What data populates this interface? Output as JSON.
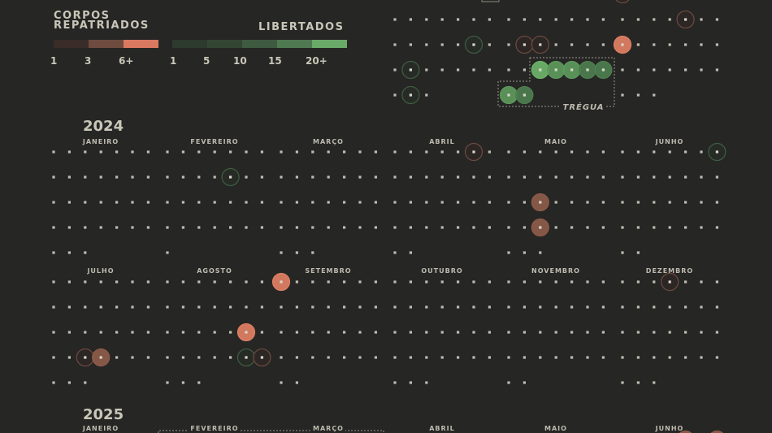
{
  "legend": {
    "bodies": {
      "title_line1": "CORPOS",
      "title_line2": "REPATRIADOS",
      "ticks": [
        "1",
        "3",
        "6+"
      ],
      "colors": [
        "#3a2c28",
        "#6e4b3f",
        "#d97a60"
      ]
    },
    "released": {
      "title": "LIBERTADOS",
      "ticks": [
        "1",
        "5",
        "10",
        "15",
        "20+"
      ],
      "colors": [
        "#2d3a2e",
        "#334634",
        "#3e5a40",
        "#4f7a51",
        "#6aaa69"
      ]
    }
  },
  "years": [
    "2024",
    "2025"
  ],
  "month_names": [
    "JANEIRO",
    "FEVEREIRO",
    "MARÇO",
    "ABRIL",
    "MAIO",
    "JUNHO",
    "JULHO",
    "AGOSTO",
    "SETEMBRO",
    "OUTUBRO",
    "NOVEMBRO",
    "DEZEMBRO"
  ],
  "truce_label": "TRÉGUA",
  "colors": {
    "background": "#262625",
    "day_dot": "#bfbdb0",
    "bodies_max": "#df7f63",
    "released_max": "#6cb36a"
  },
  "chart_data": {
    "type": "calendar-dot",
    "categories": [
      "corpos repatriados",
      "libertados"
    ],
    "events": [
      {
        "date": "2023-10-20",
        "type": "libertados",
        "level": 1
      },
      {
        "date": "2023-10-23",
        "type": "libertados",
        "level": 1
      },
      {
        "date": "2023-10-30",
        "type": "libertados",
        "level": 1
      },
      {
        "date": "2023-11-16",
        "type": "corpos",
        "level": 1
      },
      {
        "date": "2023-11-17",
        "type": "corpos",
        "level": 1
      },
      {
        "date": "2023-11-24",
        "type": "libertados",
        "level": 20
      },
      {
        "date": "2023-11-25",
        "type": "libertados",
        "level": 15
      },
      {
        "date": "2023-11-26",
        "type": "libertados",
        "level": 15
      },
      {
        "date": "2023-11-27",
        "type": "libertados",
        "level": 10
      },
      {
        "date": "2023-11-28",
        "type": "libertados",
        "level": 10
      },
      {
        "date": "2023-11-29",
        "type": "libertados",
        "level": 15
      },
      {
        "date": "2023-11-30",
        "type": "libertados",
        "level": 10
      },
      {
        "date": "2023-12-01",
        "type": "corpos",
        "level": 1
      },
      {
        "date": "2023-12-12",
        "type": "corpos",
        "level": 1
      },
      {
        "date": "2023-12-15",
        "type": "corpos",
        "level": 6
      },
      {
        "date": "2024-02-12",
        "type": "libertados",
        "level": 1
      },
      {
        "date": "2024-04-06",
        "type": "corpos",
        "level": 1
      },
      {
        "date": "2024-05-17",
        "type": "corpos",
        "level": 3
      },
      {
        "date": "2024-05-24",
        "type": "corpos",
        "level": 3
      },
      {
        "date": "2024-06-07",
        "type": "libertados",
        "level": 1
      },
      {
        "date": "2024-07-24",
        "type": "corpos",
        "level": 1
      },
      {
        "date": "2024-07-25",
        "type": "corpos",
        "level": 3
      },
      {
        "date": "2024-08-20",
        "type": "corpos",
        "level": 6
      },
      {
        "date": "2024-08-27",
        "type": "libertados",
        "level": 1
      },
      {
        "date": "2024-08-28",
        "type": "corpos",
        "level": 1
      },
      {
        "date": "2024-09-01",
        "type": "corpos",
        "level": 6
      },
      {
        "date": "2024-12-04",
        "type": "corpos",
        "level": 1
      },
      {
        "date": "2025-06-05",
        "type": "corpos",
        "level": 3
      },
      {
        "date": "2025-06-07",
        "type": "corpos",
        "level": 3
      }
    ],
    "truces": [
      {
        "label": "TRÉGUA",
        "start": "2023-11-24",
        "end": "2023-11-30"
      },
      {
        "start": "2025-02-01",
        "end": "2025-03-31"
      }
    ]
  }
}
